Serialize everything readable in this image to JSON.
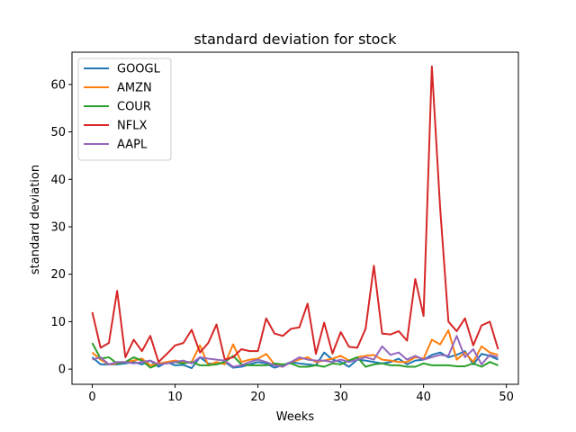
{
  "chart_data": {
    "type": "line",
    "title": "standard deviation for stock",
    "xlabel": "Weeks",
    "ylabel": "standard deviation",
    "xlim": [
      -2.45,
      51.45
    ],
    "ylim": [
      -3.2,
      66.8
    ],
    "xticks": [
      0,
      10,
      20,
      30,
      40,
      50
    ],
    "yticks": [
      0,
      10,
      20,
      30,
      40,
      50,
      60
    ],
    "legend_position": "upper-left",
    "grid": false,
    "series": [
      {
        "name": "GOOGL",
        "color": "#1f77b4",
        "values": [
          2.5,
          1.0,
          1.0,
          1.0,
          1.2,
          1.5,
          1.0,
          1.8,
          0.5,
          1.5,
          0.8,
          0.9,
          0.2,
          2.5,
          1.2,
          1.0,
          1.5,
          0.3,
          0.5,
          1.0,
          1.5,
          1.2,
          0.3,
          0.8,
          1.5,
          1.2,
          1.0,
          0.8,
          3.5,
          2.0,
          1.5,
          0.5,
          2.0,
          1.8,
          1.5,
          1.2,
          1.5,
          2.2,
          1.0,
          1.8,
          2.0,
          3.0,
          3.5,
          2.5,
          3.0,
          3.8,
          1.0,
          3.2,
          2.8,
          2.0
        ]
      },
      {
        "name": "AMZN",
        "color": "#ff7f0e",
        "values": [
          3.5,
          2.0,
          1.0,
          1.2,
          1.5,
          1.8,
          2.2,
          0.8,
          1.2,
          1.5,
          1.8,
          1.5,
          1.5,
          5.0,
          0.8,
          1.5,
          1.0,
          5.2,
          1.5,
          2.0,
          2.2,
          3.2,
          1.0,
          0.5,
          1.5,
          2.0,
          2.5,
          1.5,
          1.8,
          2.2,
          2.8,
          1.8,
          2.5,
          2.8,
          3.0,
          2.0,
          1.8,
          1.5,
          1.5,
          2.5,
          2.2,
          6.2,
          5.2,
          8.2,
          2.0,
          3.5,
          1.5,
          4.8,
          3.5,
          3.0
        ]
      },
      {
        "name": "COUR",
        "color": "#2ca02c",
        "values": [
          5.5,
          2.2,
          2.5,
          1.2,
          1.5,
          2.5,
          1.8,
          0.3,
          1.0,
          1.2,
          1.5,
          1.2,
          1.5,
          0.8,
          0.8,
          1.0,
          1.5,
          2.8,
          1.0,
          0.8,
          0.8,
          0.8,
          1.2,
          1.0,
          1.2,
          0.5,
          0.5,
          0.8,
          0.5,
          1.2,
          1.0,
          1.8,
          2.5,
          0.5,
          1.0,
          1.2,
          0.8,
          0.8,
          0.5,
          0.5,
          1.2,
          0.8,
          0.8,
          0.8,
          0.6,
          0.6,
          1.2,
          0.5,
          1.5,
          0.8
        ]
      },
      {
        "name": "NFLX",
        "color": "#d62728",
        "values": [
          12.0,
          4.5,
          5.5,
          16.5,
          2.5,
          6.2,
          3.8,
          7.0,
          1.5,
          3.2,
          5.0,
          5.5,
          8.3,
          3.5,
          5.5,
          9.4,
          2.0,
          2.5,
          4.2,
          3.8,
          3.8,
          10.7,
          7.5,
          7.0,
          8.5,
          8.8,
          13.8,
          3.2,
          9.8,
          3.3,
          7.8,
          4.7,
          4.5,
          8.5,
          21.8,
          7.5,
          7.3,
          8.0,
          6.0,
          19.0,
          11.2,
          63.8,
          34.0,
          10.0,
          8.0,
          10.7,
          5.0,
          9.2,
          10.0,
          4.2
        ]
      },
      {
        "name": "AAPL",
        "color": "#9467bd",
        "values": [
          2.0,
          2.5,
          1.0,
          1.5,
          1.5,
          1.2,
          1.5,
          1.8,
          1.0,
          1.2,
          1.5,
          1.8,
          1.2,
          2.5,
          2.2,
          2.0,
          1.8,
          0.5,
          0.8,
          1.5,
          2.0,
          1.5,
          0.8,
          0.5,
          1.5,
          2.5,
          2.0,
          1.8,
          1.8,
          1.5,
          2.0,
          1.5,
          2.0,
          2.5,
          2.0,
          4.8,
          3.0,
          3.5,
          2.0,
          2.8,
          2.0,
          2.5,
          3.0,
          2.8,
          7.0,
          2.5,
          4.2,
          1.0,
          3.0,
          2.5
        ]
      }
    ]
  }
}
